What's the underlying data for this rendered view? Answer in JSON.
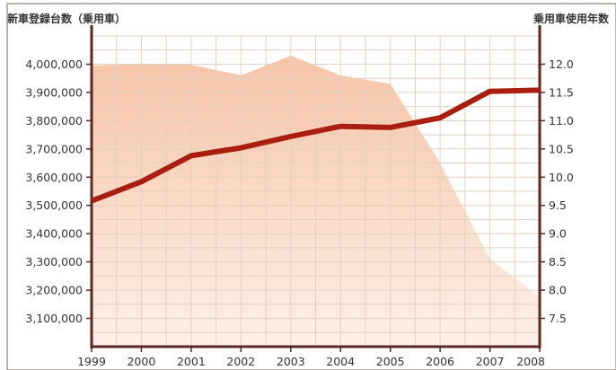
{
  "chart_data": {
    "type": "line",
    "title": "",
    "x": [
      "1999",
      "2000",
      "2001",
      "2002",
      "2003",
      "2004",
      "2005",
      "2006",
      "2007",
      "2008"
    ],
    "y_left_label": "新車登録台数（乗用車）",
    "y_right_label": "乗用車使用年数",
    "y_left_ticks": [
      "3,100,000",
      "3,200,000",
      "3,300,000",
      "3,400,000",
      "3,500,000",
      "3,600,000",
      "3,700,000",
      "3,800,000",
      "3,900,000",
      "4,000,000"
    ],
    "y_right_ticks": [
      "7.5",
      "8.0",
      "8.5",
      "9.0",
      "9.5",
      "10.0",
      "10.5",
      "11.0",
      "11.5",
      "12.0"
    ],
    "ylim_left": [
      3000000,
      4100000
    ],
    "ylim_right": [
      7.0,
      12.5
    ],
    "series": [
      {
        "kind": "area",
        "axis": "left",
        "values": [
          3995000,
          4000000,
          3998000,
          3960000,
          4030000,
          3960000,
          3930000,
          3650000,
          3310000,
          3175000
        ]
      },
      {
        "kind": "line",
        "axis": "right",
        "values": [
          9.58,
          9.92,
          10.38,
          10.52,
          10.72,
          10.9,
          10.88,
          11.05,
          11.52,
          11.54
        ]
      }
    ],
    "grid": true,
    "colors": {
      "line": "#aa1e10",
      "area_top": "#f6c4a6",
      "area_bottom": "#fdf0e8",
      "grid": "#e3cfc2",
      "axis": "#5a2a20",
      "frame": "#a8998f"
    }
  }
}
